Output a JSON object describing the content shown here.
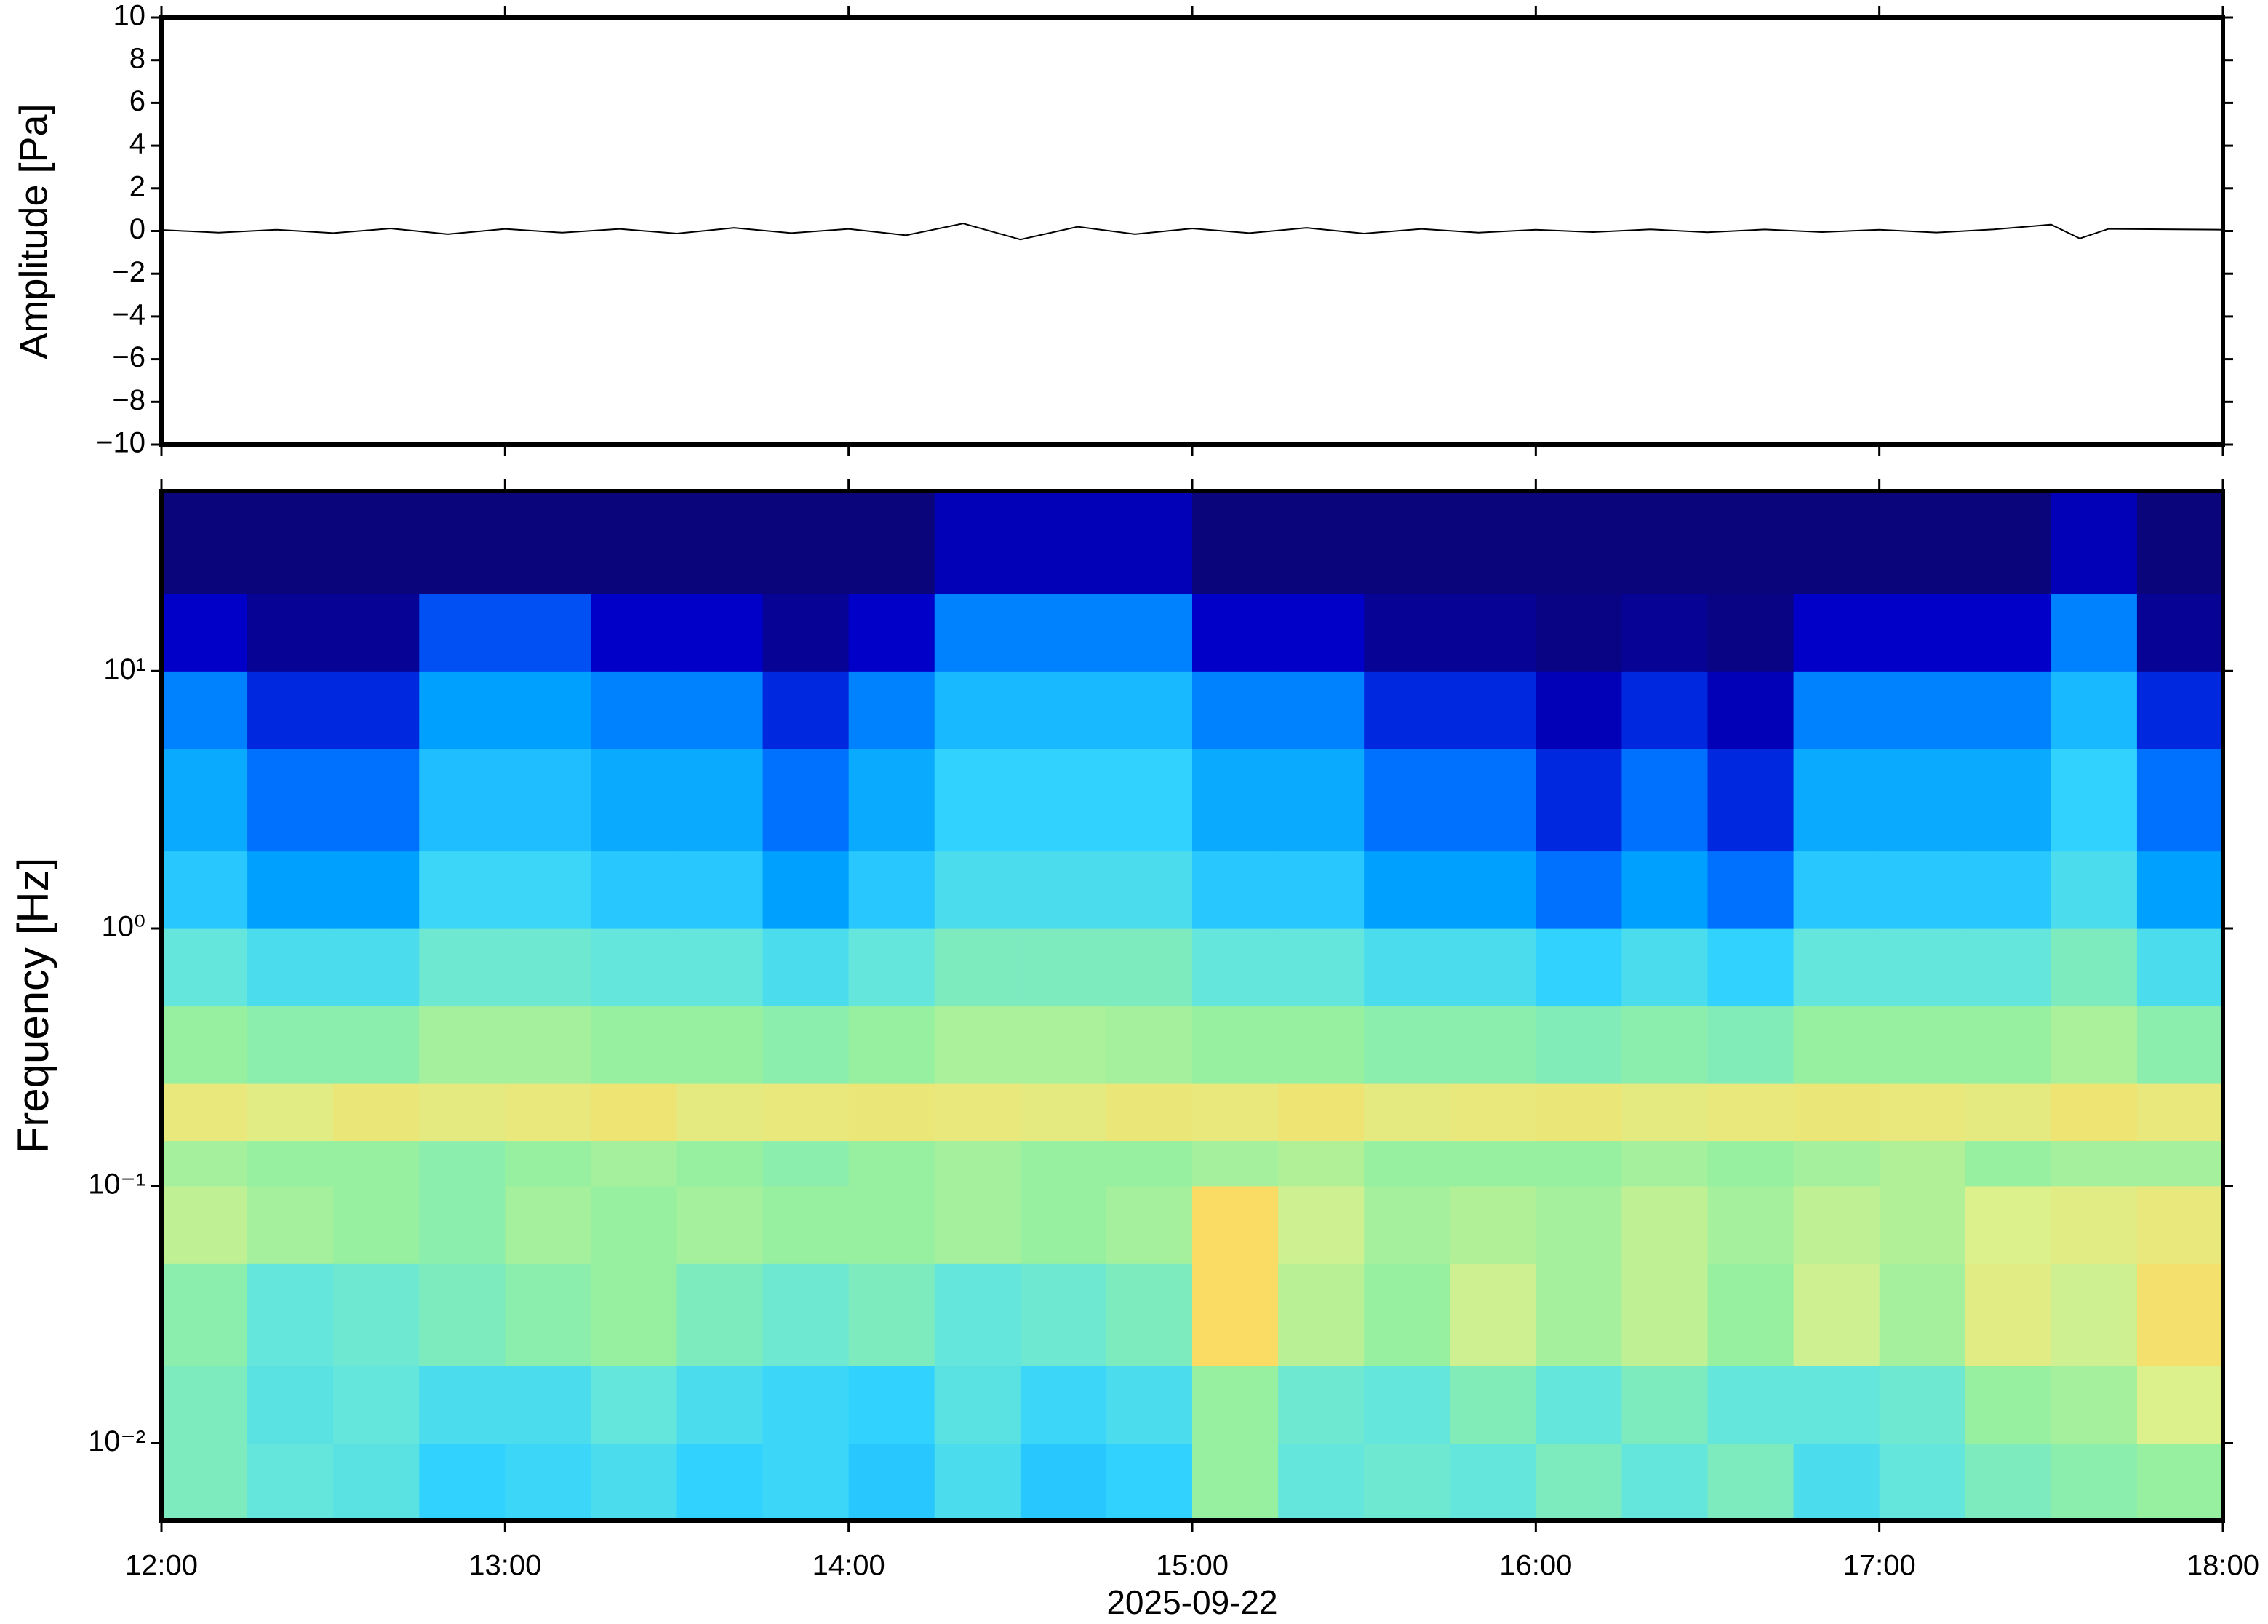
{
  "chart_data": [
    {
      "type": "line",
      "ylabel": "Amplitude [Pa]",
      "color": "#000000",
      "xlim": [
        "12:00",
        "18:00"
      ],
      "xticks": [
        "12:00",
        "13:00",
        "14:00",
        "15:00",
        "16:00",
        "17:00",
        "18:00"
      ],
      "ylim": [
        -10,
        10
      ],
      "yticks": [
        {
          "value": -10,
          "label": "−10"
        },
        {
          "value": -8,
          "label": "−8"
        },
        {
          "value": -6,
          "label": "−6"
        },
        {
          "value": -4,
          "label": "−4"
        },
        {
          "value": -2,
          "label": "−2"
        },
        0,
        2,
        4,
        6,
        8,
        10
      ],
      "x": [
        "12:00",
        "12:10",
        "12:20",
        "12:30",
        "12:40",
        "12:50",
        "13:00",
        "13:10",
        "13:20",
        "13:30",
        "13:40",
        "13:50",
        "14:00",
        "14:10",
        "14:20",
        "14:30",
        "14:40",
        "14:50",
        "15:00",
        "15:10",
        "15:20",
        "15:30",
        "15:40",
        "15:50",
        "16:00",
        "16:10",
        "16:20",
        "16:30",
        "16:40",
        "16:50",
        "17:00",
        "17:10",
        "17:20",
        "17:30",
        "17:35",
        "17:40",
        "18:00"
      ],
      "values": [
        0.05,
        -0.08,
        0.06,
        -0.1,
        0.12,
        -0.15,
        0.1,
        -0.08,
        0.1,
        -0.12,
        0.15,
        -0.1,
        0.1,
        -0.2,
        0.35,
        -0.4,
        0.2,
        -0.15,
        0.12,
        -0.1,
        0.15,
        -0.12,
        0.1,
        -0.08,
        0.06,
        -0.05,
        0.08,
        -0.06,
        0.07,
        -0.05,
        0.06,
        -0.07,
        0.08,
        0.3,
        -0.35,
        0.1,
        0.06
      ]
    },
    {
      "type": "heatmap",
      "ylabel": "Frequency [Hz]",
      "xlabel": "2025-09-22",
      "log_y": true,
      "xlim": [
        "12:00",
        "18:00"
      ],
      "xticks": [
        "12:00",
        "13:00",
        "14:00",
        "15:00",
        "16:00",
        "17:00",
        "18:00"
      ],
      "ylim": [
        0.005,
        50
      ],
      "yticks": [
        {
          "value": 0.01,
          "label": "10⁻²"
        },
        {
          "value": 0.1,
          "label": "10⁻¹"
        },
        {
          "value": 1,
          "label": "10⁰"
        },
        {
          "value": 10,
          "label": "10¹"
        }
      ],
      "colormap": [
        "#0b0572",
        "#0000c8",
        "#0064ff",
        "#00a0ff",
        "#32d2ff",
        "#64e6dc",
        "#96f0a0",
        "#dcf08c",
        "#fadc64",
        "#fa9650",
        "#e84830"
      ],
      "x_bins": [
        "12:00",
        "12:15",
        "12:30",
        "12:45",
        "13:00",
        "13:15",
        "13:30",
        "13:45",
        "14:00",
        "14:15",
        "14:30",
        "14:45",
        "15:00",
        "15:15",
        "15:30",
        "15:45",
        "16:00",
        "16:15",
        "16:30",
        "16:45",
        "17:00",
        "17:15",
        "17:30",
        "17:45",
        "18:00"
      ],
      "y_bins": [
        0.005,
        0.01,
        0.02,
        0.05,
        0.1,
        0.15,
        0.25,
        0.5,
        1,
        2,
        5,
        10,
        20,
        50
      ],
      "values": [
        [
          0.55,
          0.5,
          0.48,
          0.4,
          0.42,
          0.45,
          0.4,
          0.42,
          0.38,
          0.45,
          0.38,
          0.4,
          0.6,
          0.5,
          0.52,
          0.5,
          0.55,
          0.5,
          0.55,
          0.45,
          0.5,
          0.55,
          0.58,
          0.6
        ],
        [
          0.55,
          0.48,
          0.5,
          0.45,
          0.45,
          0.5,
          0.45,
          0.42,
          0.4,
          0.48,
          0.42,
          0.45,
          0.6,
          0.52,
          0.5,
          0.56,
          0.5,
          0.55,
          0.5,
          0.5,
          0.52,
          0.6,
          0.62,
          0.7
        ],
        [
          0.58,
          0.5,
          0.52,
          0.55,
          0.58,
          0.6,
          0.55,
          0.52,
          0.55,
          0.5,
          0.52,
          0.55,
          0.8,
          0.65,
          0.6,
          0.68,
          0.62,
          0.66,
          0.6,
          0.68,
          0.62,
          0.72,
          0.68,
          0.78
        ],
        [
          0.66,
          0.62,
          0.6,
          0.58,
          0.62,
          0.6,
          0.62,
          0.6,
          0.6,
          0.62,
          0.6,
          0.62,
          0.8,
          0.68,
          0.62,
          0.64,
          0.62,
          0.66,
          0.62,
          0.66,
          0.64,
          0.7,
          0.72,
          0.74
        ],
        [
          0.62,
          0.6,
          0.6,
          0.58,
          0.6,
          0.62,
          0.6,
          0.58,
          0.6,
          0.62,
          0.6,
          0.6,
          0.62,
          0.64,
          0.6,
          0.6,
          0.6,
          0.62,
          0.6,
          0.62,
          0.64,
          0.6,
          0.62,
          0.62
        ],
        [
          0.74,
          0.72,
          0.75,
          0.73,
          0.74,
          0.76,
          0.73,
          0.74,
          0.75,
          0.74,
          0.73,
          0.75,
          0.74,
          0.76,
          0.73,
          0.74,
          0.75,
          0.73,
          0.74,
          0.75,
          0.74,
          0.73,
          0.76,
          0.74
        ],
        [
          0.6,
          0.58,
          0.58,
          0.62,
          0.62,
          0.6,
          0.6,
          0.58,
          0.6,
          0.63,
          0.63,
          0.62,
          0.6,
          0.6,
          0.58,
          0.58,
          0.56,
          0.58,
          0.56,
          0.6,
          0.6,
          0.6,
          0.63,
          0.58
        ],
        [
          0.5,
          0.45,
          0.45,
          0.52,
          0.52,
          0.5,
          0.5,
          0.45,
          0.5,
          0.55,
          0.55,
          0.55,
          0.5,
          0.5,
          0.45,
          0.45,
          0.4,
          0.45,
          0.4,
          0.5,
          0.5,
          0.5,
          0.55,
          0.45
        ],
        [
          0.38,
          0.3,
          0.3,
          0.42,
          0.42,
          0.38,
          0.38,
          0.3,
          0.38,
          0.45,
          0.45,
          0.45,
          0.38,
          0.38,
          0.3,
          0.3,
          0.22,
          0.3,
          0.22,
          0.38,
          0.38,
          0.38,
          0.45,
          0.3
        ],
        [
          0.32,
          0.22,
          0.22,
          0.36,
          0.36,
          0.32,
          0.32,
          0.22,
          0.32,
          0.4,
          0.4,
          0.4,
          0.32,
          0.32,
          0.22,
          0.22,
          0.14,
          0.22,
          0.14,
          0.32,
          0.32,
          0.32,
          0.4,
          0.22
        ],
        [
          0.25,
          0.14,
          0.14,
          0.3,
          0.3,
          0.25,
          0.25,
          0.14,
          0.25,
          0.35,
          0.35,
          0.35,
          0.25,
          0.25,
          0.14,
          0.14,
          0.08,
          0.14,
          0.08,
          0.25,
          0.25,
          0.25,
          0.35,
          0.14
        ],
        [
          0.1,
          0.04,
          0.04,
          0.18,
          0.18,
          0.1,
          0.1,
          0.04,
          0.1,
          0.25,
          0.25,
          0.25,
          0.1,
          0.1,
          0.04,
          0.04,
          0.02,
          0.04,
          0.02,
          0.1,
          0.1,
          0.1,
          0.25,
          0.04
        ],
        [
          0.01,
          0.01,
          0.01,
          0.01,
          0.01,
          0.01,
          0.01,
          0.01,
          0.01,
          0.08,
          0.08,
          0.08,
          0.01,
          0.01,
          0.01,
          0.01,
          0.01,
          0.01,
          0.01,
          0.01,
          0.01,
          0.01,
          0.08,
          0.01
        ]
      ]
    }
  ]
}
